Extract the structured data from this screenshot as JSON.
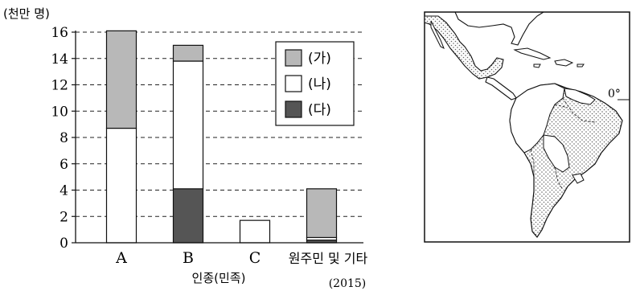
{
  "chart_data": {
    "type": "bar",
    "stacked": true,
    "unit_label": "(천만 명)",
    "xlabel": "인종(민족)",
    "note": "(2015)",
    "ylim": [
      0,
      16
    ],
    "yticks": [
      "0",
      "2",
      "4",
      "6",
      "8",
      "10",
      "12",
      "14",
      "16"
    ],
    "grid": true,
    "legend_position": "top-right",
    "categories": [
      "A",
      "B",
      "C",
      "원주민 및 기타"
    ],
    "series": [
      {
        "name": "(다)",
        "color": "#555555",
        "values": [
          0,
          4.1,
          0,
          0.2
        ]
      },
      {
        "name": "(나)",
        "color": "#ffffff",
        "values": [
          8.7,
          9.7,
          1.7,
          0.2
        ]
      },
      {
        "name": "(가)",
        "color": "#b8b8b8",
        "values": [
          7.4,
          1.2,
          0,
          3.7
        ]
      }
    ],
    "legend_order": [
      "(가)",
      "(나)",
      "(다)"
    ]
  },
  "map": {
    "equator_label": "0°"
  }
}
